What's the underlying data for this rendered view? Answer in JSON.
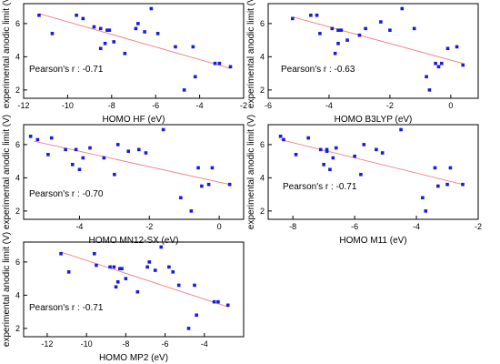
{
  "colors": {
    "marker": "#1a1adf",
    "fit": "#f08080",
    "frame": "#000000"
  },
  "chart_data": [
    {
      "type": "scatter",
      "title": "",
      "xlabel": "HOMO HF (eV)",
      "ylabel": "experimental anodic limit (V)",
      "annotation": {
        "label": "Pearson's r :",
        "value": "-0.71"
      },
      "xlim": [
        -12,
        -2
      ],
      "ylim": [
        1.5,
        7.2
      ],
      "xticks": [
        -12,
        -10,
        -8,
        -6,
        -4,
        -2
      ],
      "yticks": [
        2,
        4,
        6
      ],
      "grid": false,
      "points": [
        {
          "x": -11.3,
          "y": 6.5
        },
        {
          "x": -10.7,
          "y": 5.4
        },
        {
          "x": -9.6,
          "y": 6.5
        },
        {
          "x": -9.3,
          "y": 6.3
        },
        {
          "x": -8.8,
          "y": 5.8
        },
        {
          "x": -8.5,
          "y": 5.7
        },
        {
          "x": -8.5,
          "y": 4.5
        },
        {
          "x": -8.3,
          "y": 4.8
        },
        {
          "x": -8.2,
          "y": 5.6
        },
        {
          "x": -8.1,
          "y": 5.6
        },
        {
          "x": -7.9,
          "y": 4.9
        },
        {
          "x": -7.4,
          "y": 4.2
        },
        {
          "x": -6.9,
          "y": 5.7
        },
        {
          "x": -6.8,
          "y": 6.0
        },
        {
          "x": -6.5,
          "y": 5.5
        },
        {
          "x": -6.2,
          "y": 6.9
        },
        {
          "x": -5.9,
          "y": 5.4
        },
        {
          "x": -5.1,
          "y": 4.6
        },
        {
          "x": -4.7,
          "y": 2.0
        },
        {
          "x": -4.3,
          "y": 4.6
        },
        {
          "x": -4.2,
          "y": 2.8
        },
        {
          "x": -3.3,
          "y": 3.6
        },
        {
          "x": -3.1,
          "y": 3.6
        },
        {
          "x": -2.6,
          "y": 3.4
        }
      ],
      "fit_line": {
        "x": [
          -11.3,
          -2.6
        ],
        "y": [
          6.6,
          3.3
        ]
      }
    },
    {
      "type": "scatter",
      "title": "",
      "xlabel": "HOMO B3LYP (eV)",
      "ylabel": "experimental anodic limit (V)",
      "annotation": {
        "label": "Pearson's r :",
        "value": "-0.63"
      },
      "xlim": [
        -6,
        0.9
      ],
      "ylim": [
        1.5,
        7.2
      ],
      "xticks": [
        -6,
        -4,
        -2,
        0
      ],
      "yticks": [
        2,
        4,
        6
      ],
      "grid": false,
      "points": [
        {
          "x": -5.2,
          "y": 6.3
        },
        {
          "x": -4.6,
          "y": 6.5
        },
        {
          "x": -4.4,
          "y": 6.5
        },
        {
          "x": -4.3,
          "y": 5.4
        },
        {
          "x": -3.9,
          "y": 5.7
        },
        {
          "x": -3.8,
          "y": 4.2
        },
        {
          "x": -3.7,
          "y": 5.6
        },
        {
          "x": -3.7,
          "y": 4.8
        },
        {
          "x": -3.6,
          "y": 5.6
        },
        {
          "x": -3.4,
          "y": 5.0
        },
        {
          "x": -3.0,
          "y": 5.3
        },
        {
          "x": -2.8,
          "y": 5.7
        },
        {
          "x": -2.3,
          "y": 6.1
        },
        {
          "x": -2.0,
          "y": 5.6
        },
        {
          "x": -1.6,
          "y": 6.9
        },
        {
          "x": -1.2,
          "y": 5.7
        },
        {
          "x": -0.8,
          "y": 2.8
        },
        {
          "x": -0.7,
          "y": 2.0
        },
        {
          "x": -0.5,
          "y": 3.6
        },
        {
          "x": -0.4,
          "y": 3.4
        },
        {
          "x": -0.3,
          "y": 3.6
        },
        {
          "x": -0.1,
          "y": 4.5
        },
        {
          "x": 0.2,
          "y": 4.6
        },
        {
          "x": 0.4,
          "y": 3.5
        }
      ],
      "fit_line": {
        "x": [
          -5.2,
          0.4
        ],
        "y": [
          6.4,
          3.6
        ]
      }
    },
    {
      "type": "scatter",
      "title": "",
      "xlabel": "HOMO MN12-SX (eV)",
      "ylabel": "experimental anodic limit (V)",
      "annotation": {
        "label": "Pearson's r :",
        "value": "-0.70"
      },
      "xlim": [
        -5.6,
        0.7
      ],
      "ylim": [
        1.5,
        7.2
      ],
      "xticks": [
        -4,
        -2,
        0
      ],
      "yticks": [
        2,
        4,
        6
      ],
      "grid": false,
      "points": [
        {
          "x": -5.4,
          "y": 6.5
        },
        {
          "x": -5.2,
          "y": 6.3
        },
        {
          "x": -4.9,
          "y": 5.4
        },
        {
          "x": -4.8,
          "y": 6.4
        },
        {
          "x": -4.4,
          "y": 5.7
        },
        {
          "x": -4.2,
          "y": 4.8
        },
        {
          "x": -4.1,
          "y": 5.7
        },
        {
          "x": -4.0,
          "y": 4.5
        },
        {
          "x": -3.9,
          "y": 5.2
        },
        {
          "x": -3.7,
          "y": 5.8
        },
        {
          "x": -3.3,
          "y": 5.2
        },
        {
          "x": -3.0,
          "y": 4.2
        },
        {
          "x": -2.9,
          "y": 6.0
        },
        {
          "x": -2.6,
          "y": 5.6
        },
        {
          "x": -2.3,
          "y": 5.7
        },
        {
          "x": -2.1,
          "y": 5.5
        },
        {
          "x": -1.6,
          "y": 6.9
        },
        {
          "x": -1.1,
          "y": 2.8
        },
        {
          "x": -0.8,
          "y": 2.0
        },
        {
          "x": -0.6,
          "y": 4.6
        },
        {
          "x": -0.5,
          "y": 3.5
        },
        {
          "x": -0.3,
          "y": 3.6
        },
        {
          "x": -0.2,
          "y": 4.6
        },
        {
          "x": 0.3,
          "y": 3.6
        }
      ],
      "fit_line": {
        "x": [
          -5.3,
          0.3
        ],
        "y": [
          6.2,
          3.6
        ]
      }
    },
    {
      "type": "scatter",
      "title": "",
      "xlabel": "HOMO M11 (eV)",
      "ylabel": "experimental anodic limit (V)",
      "annotation": {
        "label": "Pearson's r :",
        "value": "-0.71"
      },
      "xlim": [
        -8.8,
        -2
      ],
      "ylim": [
        1.5,
        7.2
      ],
      "xticks": [
        -8,
        -6,
        -4,
        -2
      ],
      "yticks": [
        2,
        4,
        6
      ],
      "grid": false,
      "points": [
        {
          "x": -8.4,
          "y": 6.5
        },
        {
          "x": -8.3,
          "y": 6.3
        },
        {
          "x": -7.9,
          "y": 5.4
        },
        {
          "x": -7.5,
          "y": 6.4
        },
        {
          "x": -7.1,
          "y": 5.7
        },
        {
          "x": -7.0,
          "y": 4.8
        },
        {
          "x": -6.9,
          "y": 5.6
        },
        {
          "x": -6.9,
          "y": 5.7
        },
        {
          "x": -6.8,
          "y": 4.5
        },
        {
          "x": -6.7,
          "y": 5.2
        },
        {
          "x": -6.6,
          "y": 5.8
        },
        {
          "x": -6.0,
          "y": 5.3
        },
        {
          "x": -5.8,
          "y": 4.2
        },
        {
          "x": -5.7,
          "y": 6.0
        },
        {
          "x": -5.3,
          "y": 5.7
        },
        {
          "x": -5.1,
          "y": 5.5
        },
        {
          "x": -4.5,
          "y": 6.9
        },
        {
          "x": -3.8,
          "y": 2.8
        },
        {
          "x": -3.7,
          "y": 2.0
        },
        {
          "x": -3.4,
          "y": 4.6
        },
        {
          "x": -3.3,
          "y": 3.5
        },
        {
          "x": -3.0,
          "y": 3.6
        },
        {
          "x": -2.9,
          "y": 4.6
        },
        {
          "x": -2.5,
          "y": 3.6
        }
      ],
      "fit_line": {
        "x": [
          -8.4,
          -2.5
        ],
        "y": [
          6.3,
          3.6
        ]
      }
    },
    {
      "type": "scatter",
      "title": "",
      "xlabel": "HOMO MP2 (eV)",
      "ylabel": "experimental anodic limit (V)",
      "annotation": {
        "label": "Pearson's r :",
        "value": "-0.71"
      },
      "xlim": [
        -13.2,
        -2
      ],
      "ylim": [
        1.5,
        7.2
      ],
      "xticks": [
        -12,
        -10,
        -8,
        -6,
        -4
      ],
      "yticks": [
        2,
        4,
        6
      ],
      "grid": false,
      "points": [
        {
          "x": -11.3,
          "y": 6.5
        },
        {
          "x": -10.9,
          "y": 5.4
        },
        {
          "x": -9.6,
          "y": 6.5
        },
        {
          "x": -9.5,
          "y": 5.8
        },
        {
          "x": -8.8,
          "y": 5.7
        },
        {
          "x": -8.6,
          "y": 5.7
        },
        {
          "x": -8.5,
          "y": 4.5
        },
        {
          "x": -8.4,
          "y": 4.8
        },
        {
          "x": -8.3,
          "y": 5.6
        },
        {
          "x": -8.2,
          "y": 5.6
        },
        {
          "x": -8.0,
          "y": 5.0
        },
        {
          "x": -7.4,
          "y": 4.2
        },
        {
          "x": -6.9,
          "y": 5.7
        },
        {
          "x": -6.8,
          "y": 6.0
        },
        {
          "x": -6.5,
          "y": 5.5
        },
        {
          "x": -6.2,
          "y": 6.9
        },
        {
          "x": -5.8,
          "y": 5.7
        },
        {
          "x": -5.6,
          "y": 5.4
        },
        {
          "x": -5.3,
          "y": 4.6
        },
        {
          "x": -4.8,
          "y": 2.0
        },
        {
          "x": -4.5,
          "y": 4.6
        },
        {
          "x": -4.4,
          "y": 2.8
        },
        {
          "x": -3.5,
          "y": 3.6
        },
        {
          "x": -3.3,
          "y": 3.6
        },
        {
          "x": -2.8,
          "y": 3.4
        }
      ],
      "fit_line": {
        "x": [
          -11.3,
          -2.8
        ],
        "y": [
          6.6,
          3.3
        ]
      }
    }
  ]
}
